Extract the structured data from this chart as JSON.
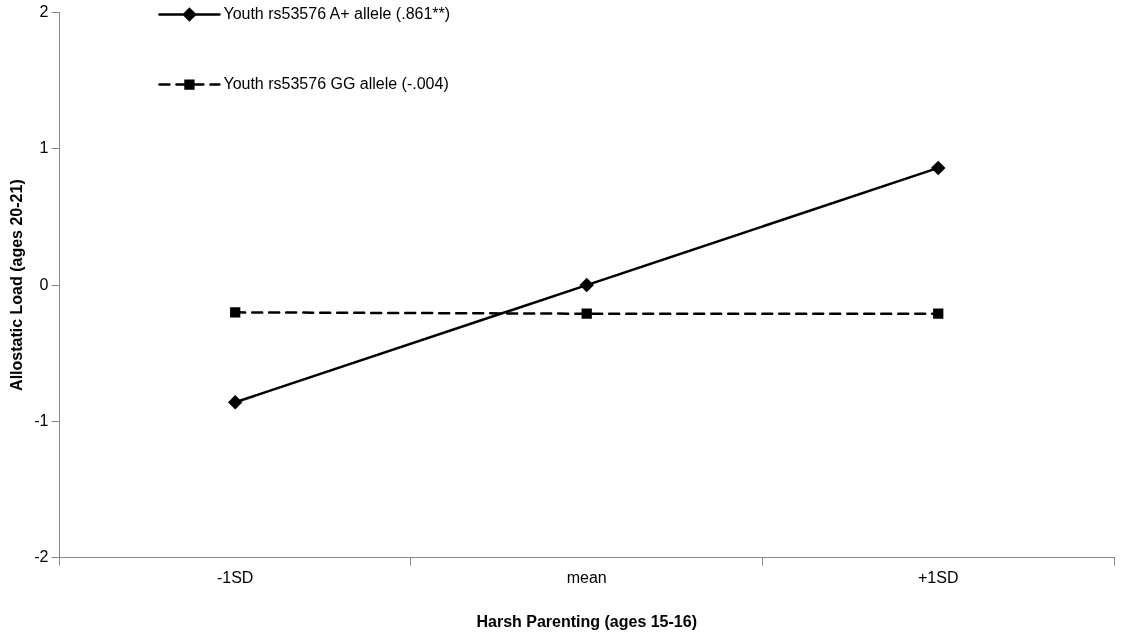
{
  "chart_data": {
    "type": "line",
    "xlabel": "Harsh Parenting (ages 15-16)",
    "ylabel": "Allostatic Load (ages 20-21)",
    "categories": [
      "-1SD",
      "mean",
      "+1SD"
    ],
    "series": [
      {
        "name": "Youth rs53576 A+ allele (.861**)",
        "color": "#000000",
        "values": [
          -0.86,
          0.0,
          0.86
        ],
        "marker": "diamond",
        "line_style": "solid"
      },
      {
        "name": "Youth rs53576 GG allele (-.004)",
        "color": "#000000",
        "values": [
          -0.2,
          -0.21,
          -0.21
        ],
        "marker": "square",
        "line_style": "dashed"
      }
    ],
    "ylim": [
      -2,
      2
    ],
    "yticks": [
      -2,
      -1,
      0,
      1,
      2
    ],
    "grid": false,
    "legend": "top left"
  }
}
